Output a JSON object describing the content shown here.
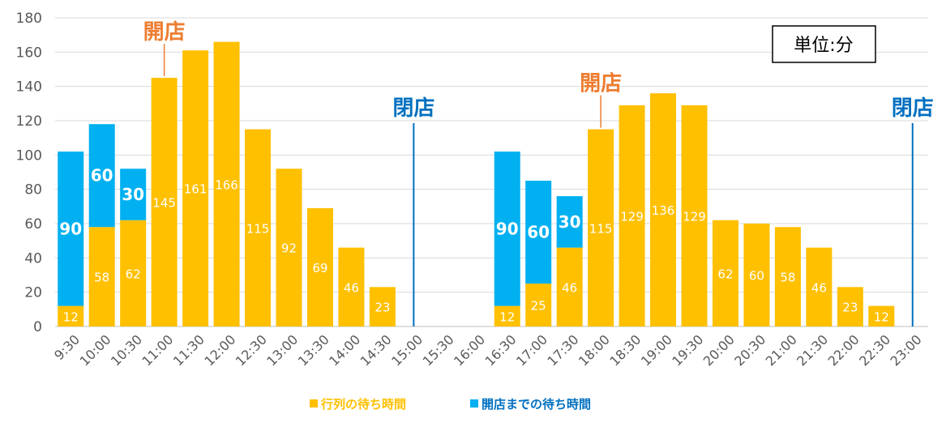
{
  "chart_data": {
    "type": "bar",
    "stacked": true,
    "categories": [
      "9:30",
      "10:00",
      "10:30",
      "11:00",
      "11:30",
      "12:00",
      "12:30",
      "13:00",
      "13:30",
      "14:00",
      "14:30",
      "15:00",
      "15:30",
      "16:00",
      "16:30",
      "17:00",
      "17:30",
      "18:00",
      "18:30",
      "19:00",
      "19:30",
      "20:00",
      "20:30",
      "21:00",
      "21:30",
      "22:00",
      "22:30",
      "23:00"
    ],
    "series": [
      {
        "name": "行列の待ち時間",
        "color": "#FFC000",
        "values": [
          12,
          58,
          62,
          145,
          161,
          166,
          115,
          92,
          69,
          46,
          23,
          0,
          0,
          0,
          12,
          25,
          46,
          115,
          129,
          136,
          129,
          62,
          60,
          58,
          46,
          23,
          12,
          0
        ]
      },
      {
        "name": "開店までの待ち時間",
        "color": "#00B0F0",
        "values": [
          90,
          60,
          30,
          0,
          0,
          0,
          0,
          0,
          0,
          0,
          0,
          0,
          0,
          0,
          90,
          60,
          30,
          0,
          0,
          0,
          0,
          0,
          0,
          0,
          0,
          0,
          0,
          0
        ]
      }
    ],
    "ylim": [
      0,
      180
    ],
    "yticks": [
      0,
      20,
      40,
      60,
      80,
      100,
      120,
      140,
      160,
      180
    ],
    "grid": true,
    "legend": "bottom",
    "unit_label": "単位:分",
    "annotations": [
      {
        "text": "開店",
        "category": "11:00",
        "color": "#ED7D31"
      },
      {
        "text": "閉店",
        "category": "15:00",
        "color": "#0070C0"
      },
      {
        "text": "開店",
        "category": "18:00",
        "color": "#ED7D31"
      },
      {
        "text": "閉店",
        "category": "23:00",
        "color": "#0070C0"
      }
    ]
  }
}
